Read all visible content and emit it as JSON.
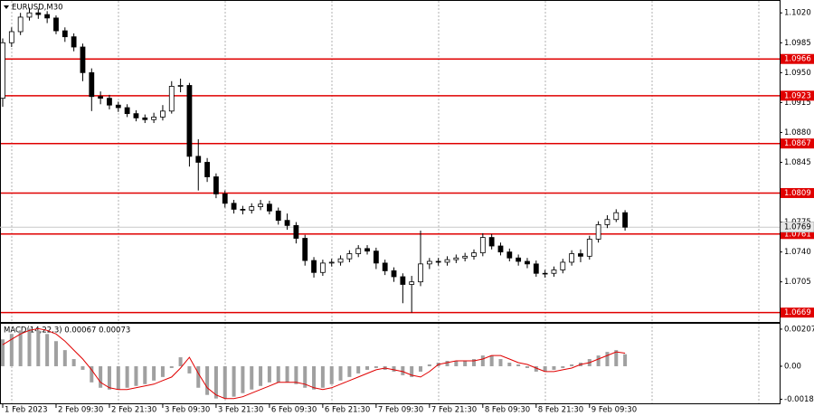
{
  "chart_data": [
    {
      "type": "candlestick",
      "title": "EURUSD,M30",
      "color": "#000000",
      "level_color": "#e00000",
      "categories": [
        "1 Feb 2023",
        null,
        null,
        null,
        null,
        null,
        "2 Feb 09:30",
        null,
        null,
        null,
        null,
        null,
        "2 Feb 21:30",
        null,
        null,
        null,
        null,
        null,
        "3 Feb 09:30",
        null,
        null,
        null,
        null,
        null,
        "3 Feb 21:30",
        null,
        null,
        null,
        null,
        null,
        "6 Feb 09:30",
        null,
        null,
        null,
        null,
        null,
        "6 Feb 21:30",
        null,
        null,
        null,
        null,
        null,
        "7 Feb 09:30",
        null,
        null,
        null,
        null,
        null,
        "7 Feb 21:30",
        null,
        null,
        null,
        null,
        null,
        "8 Feb 09:30",
        null,
        null,
        null,
        null,
        null,
        "8 Feb 21:30",
        null,
        null,
        null,
        null,
        null,
        "9 Feb 09:30",
        null,
        null,
        null,
        null
      ],
      "open": [
        1.092,
        1.0985,
        1.0998,
        1.1015,
        1.102,
        1.1018,
        1.1014,
        1.0999,
        1.0992,
        1.098,
        1.095,
        1.0922,
        1.092,
        1.0912,
        1.0909,
        1.0902,
        1.0897,
        1.0895,
        1.0898,
        1.0905,
        1.0934,
        1.0935,
        1.0852,
        1.0845,
        1.0828,
        1.0808,
        1.0797,
        1.079,
        1.0789,
        1.0793,
        1.0796,
        1.0788,
        1.0777,
        1.0771,
        1.0756,
        1.073,
        1.0716,
        1.0727,
        1.0728,
        1.0732,
        1.0738,
        1.0744,
        1.0741,
        1.0727,
        1.0718,
        1.0711,
        1.0702,
        1.0705,
        1.0726,
        1.0729,
        1.0728,
        1.0731,
        1.0733,
        1.0735,
        1.0739,
        1.0757,
        1.0747,
        1.074,
        1.0733,
        1.0729,
        1.0726,
        1.0715,
        1.0715,
        1.0719,
        1.0728,
        1.0738,
        1.0735,
        1.0755,
        1.0772,
        1.0778,
        1.0786
      ],
      "high": [
        1.099,
        1.1003,
        1.102,
        1.1026,
        1.1025,
        1.1022,
        1.1017,
        1.1003,
        1.0996,
        1.0984,
        1.0955,
        1.0928,
        1.0924,
        1.0916,
        1.0913,
        1.0906,
        1.0901,
        1.0903,
        1.0912,
        1.094,
        1.0943,
        1.0938,
        1.0872,
        1.085,
        1.0832,
        1.0812,
        1.0801,
        1.0794,
        1.0797,
        1.0801,
        1.08,
        1.0792,
        1.0785,
        1.0775,
        1.076,
        1.0734,
        1.0731,
        1.0732,
        1.0736,
        1.0742,
        1.0748,
        1.0748,
        1.0745,
        1.0731,
        1.0722,
        1.0715,
        1.0712,
        1.0765,
        1.0733,
        1.0733,
        1.0735,
        1.0737,
        1.0739,
        1.0743,
        1.0762,
        1.0761,
        1.0751,
        1.0744,
        1.0737,
        1.0733,
        1.073,
        1.0719,
        1.0723,
        1.0732,
        1.0742,
        1.0743,
        1.0759,
        1.0776,
        1.0783,
        1.079,
        1.0789
      ],
      "low": [
        1.091,
        1.098,
        1.0994,
        1.1011,
        1.1013,
        1.1008,
        1.0995,
        1.0986,
        1.0975,
        1.094,
        1.0905,
        1.0913,
        1.0907,
        1.0904,
        1.0898,
        1.0893,
        1.0891,
        1.0891,
        1.0894,
        1.0902,
        1.0927,
        1.084,
        1.0812,
        1.0822,
        1.0803,
        1.0792,
        1.0785,
        1.0784,
        1.0785,
        1.0789,
        1.0784,
        1.0772,
        1.0766,
        1.075,
        1.0724,
        1.071,
        1.0712,
        1.0723,
        1.0724,
        1.0728,
        1.0734,
        1.0737,
        1.072,
        1.0713,
        1.0705,
        1.068,
        1.0669,
        1.07,
        1.072,
        1.0724,
        1.0724,
        1.0727,
        1.0729,
        1.0731,
        1.0735,
        1.0743,
        1.0736,
        1.0729,
        1.0724,
        1.0721,
        1.0711,
        1.071,
        1.0711,
        1.0715,
        1.0724,
        1.0728,
        1.0731,
        1.0751,
        1.0768,
        1.0775,
        1.0765
      ],
      "close": [
        1.0985,
        1.0998,
        1.1015,
        1.102,
        1.1018,
        1.1014,
        1.0999,
        1.0992,
        1.098,
        1.095,
        1.0922,
        1.092,
        1.0912,
        1.0909,
        1.0902,
        1.0897,
        1.0895,
        1.0898,
        1.0905,
        1.0934,
        1.0935,
        1.0852,
        1.0845,
        1.0828,
        1.0808,
        1.0797,
        1.079,
        1.0789,
        1.0793,
        1.0796,
        1.0788,
        1.0777,
        1.0771,
        1.0756,
        1.073,
        1.0716,
        1.0727,
        1.0728,
        1.0732,
        1.0738,
        1.0744,
        1.0741,
        1.0727,
        1.0718,
        1.0711,
        1.0702,
        1.0705,
        1.0726,
        1.0729,
        1.0728,
        1.0731,
        1.0733,
        1.0735,
        1.0739,
        1.0757,
        1.0747,
        1.074,
        1.0733,
        1.0729,
        1.0726,
        1.0715,
        1.0715,
        1.0719,
        1.0728,
        1.0738,
        1.0735,
        1.0755,
        1.0772,
        1.0778,
        1.0786,
        1.0769
      ],
      "levels": [
        1.0966,
        1.0923,
        1.0867,
        1.0809,
        1.0761,
        1.0669
      ],
      "current_price": 1.0769,
      "ylim": [
        1.0657,
        1.1034
      ],
      "yticks": [
        {
          "value": 1.102,
          "label": "1.1020"
        },
        1.0985,
        {
          "value": 1.095,
          "label": "1.0950"
        },
        1.0915,
        {
          "value": 1.088,
          "label": "1.0880"
        },
        1.0845,
        1.0775,
        {
          "value": 1.074,
          "label": "1.0740"
        },
        1.0705
      ]
    },
    {
      "type": "macd",
      "label": "MACD(14,22,3) 0.00067 0.00073",
      "color": "#a0a0a0",
      "signal_color": "#e00000",
      "values": [
        0.0015,
        0.0018,
        0.002,
        0.0021,
        0.002,
        0.0018,
        0.0014,
        0.0009,
        0.0004,
        -0.0002,
        -0.0009,
        -0.0012,
        -0.0013,
        -0.0013,
        -0.0012,
        -0.0011,
        -0.001,
        -0.0008,
        -0.0006,
        -0.0001,
        0.0005,
        -0.0004,
        -0.0012,
        -0.0016,
        -0.0018,
        -0.0018,
        -0.0017,
        -0.0015,
        -0.0013,
        -0.0011,
        -0.0009,
        -0.0009,
        -0.0009,
        -0.001,
        -0.0012,
        -0.0013,
        -0.0012,
        -0.001,
        -0.0008,
        -0.0006,
        -0.0004,
        -0.0002,
        -0.0001,
        -0.0002,
        -0.0003,
        -0.0005,
        -0.0006,
        -0.0003,
        0.0001,
        0.0002,
        0.0003,
        0.0003,
        0.0003,
        0.0004,
        0.0006,
        0.0006,
        0.0004,
        0.0002,
        0.0001,
        -0.0001,
        -0.0003,
        -0.0003,
        -0.0002,
        -0.0001,
        0.0001,
        0.0002,
        0.0004,
        0.0006,
        0.0008,
        0.0009,
        0.00067
      ],
      "signal_values": [
        0.0012,
        0.0015,
        0.0018,
        0.002,
        0.0021,
        0.002,
        0.0018,
        0.0014,
        0.0009,
        0.0004,
        -0.0002,
        -0.0009,
        -0.0012,
        -0.0013,
        -0.0013,
        -0.0012,
        -0.0011,
        -0.001,
        -0.0008,
        -0.0006,
        -0.0001,
        0.0005,
        -0.0004,
        -0.0012,
        -0.0016,
        -0.0018,
        -0.0018,
        -0.0017,
        -0.0015,
        -0.0013,
        -0.0011,
        -0.0009,
        -0.0009,
        -0.0009,
        -0.001,
        -0.0012,
        -0.0013,
        -0.0012,
        -0.001,
        -0.0008,
        -0.0006,
        -0.0004,
        -0.0002,
        -0.0001,
        -0.0002,
        -0.0003,
        -0.0005,
        -0.0006,
        -0.0003,
        0.0001,
        0.0002,
        0.0003,
        0.0003,
        0.0003,
        0.0004,
        0.0006,
        0.0006,
        0.0004,
        0.0002,
        0.0001,
        -0.0001,
        -0.0003,
        -0.0003,
        -0.0002,
        -0.0001,
        0.0001,
        0.0002,
        0.0004,
        0.0006,
        0.0008,
        0.00073
      ],
      "ylim": [
        -0.00212,
        0.00237
      ],
      "yticks": [
        0.00207,
        {
          "value": 0,
          "label": "0.00"
        },
        -0.00184
      ]
    }
  ]
}
